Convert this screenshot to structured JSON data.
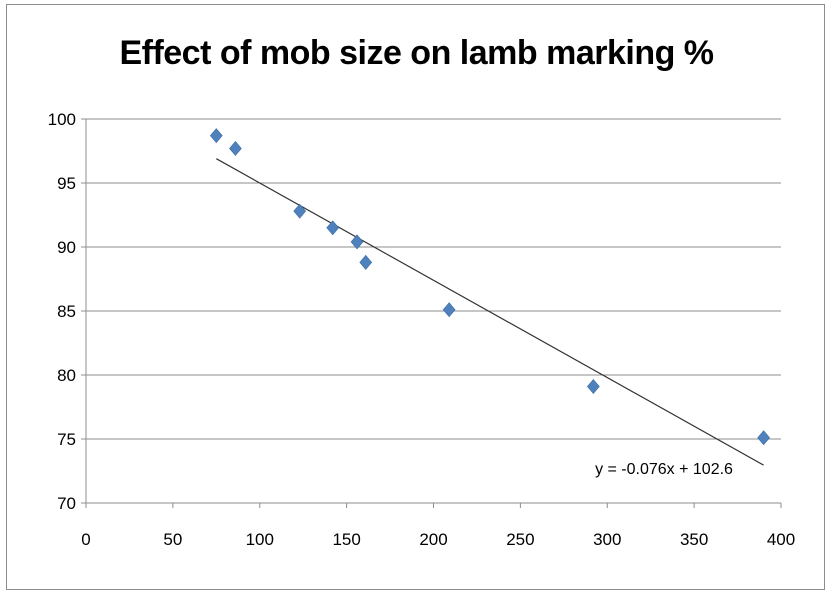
{
  "chart_data": {
    "type": "scatter",
    "title": "Effect of mob size on lamb marking %",
    "xlabel": "",
    "ylabel": "",
    "xlim": [
      0,
      400
    ],
    "ylim": [
      70,
      100
    ],
    "x_ticks": [
      0,
      50,
      100,
      150,
      200,
      250,
      300,
      350,
      400
    ],
    "y_ticks": [
      70,
      75,
      80,
      85,
      90,
      95,
      100
    ],
    "grid": "horizontal",
    "legend": "none",
    "series": [
      {
        "marker": "diamond",
        "color": "#4F81BD",
        "points": [
          {
            "x": 75,
            "y": 98.7
          },
          {
            "x": 86,
            "y": 97.7
          },
          {
            "x": 123,
            "y": 92.8
          },
          {
            "x": 142,
            "y": 91.5
          },
          {
            "x": 156,
            "y": 90.4
          },
          {
            "x": 161,
            "y": 88.8
          },
          {
            "x": 209,
            "y": 85.1
          },
          {
            "x": 292,
            "y": 79.1
          },
          {
            "x": 390,
            "y": 75.1
          }
        ]
      }
    ],
    "trendline": {
      "type": "linear",
      "slope": -0.076,
      "intercept": 102.6,
      "x_range": [
        75,
        390
      ],
      "color": "#333333",
      "equation_label": "y = -0.076x + 102.6"
    }
  }
}
